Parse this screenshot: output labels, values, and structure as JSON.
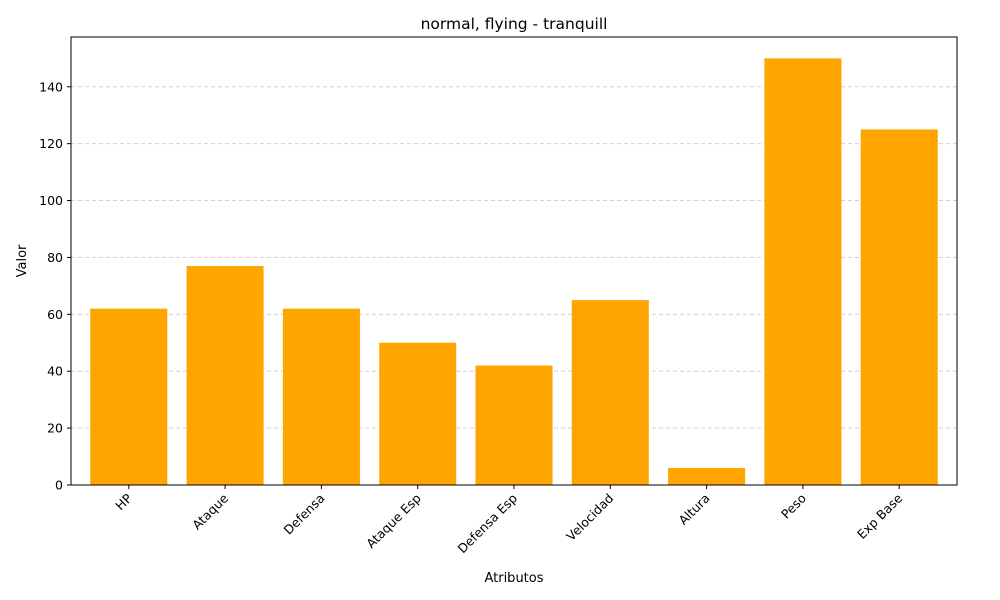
{
  "chart_data": {
    "type": "bar",
    "title": "normal, flying - tranquill",
    "xlabel": "Atributos",
    "ylabel": "Valor",
    "categories": [
      "HP",
      "Ataque",
      "Defensa",
      "Ataque Esp",
      "Defensa Esp",
      "Velocidad",
      "Altura",
      "Peso",
      "Exp Base"
    ],
    "values": [
      62,
      77,
      62,
      50,
      42,
      65,
      6,
      150,
      125
    ],
    "ylim": [
      0,
      157.5
    ],
    "yticks": [
      0,
      20,
      40,
      60,
      80,
      100,
      120,
      140
    ],
    "grid": "horizontal dashed",
    "bar_color": "#ffa500",
    "grid_color": "#cccccc"
  }
}
